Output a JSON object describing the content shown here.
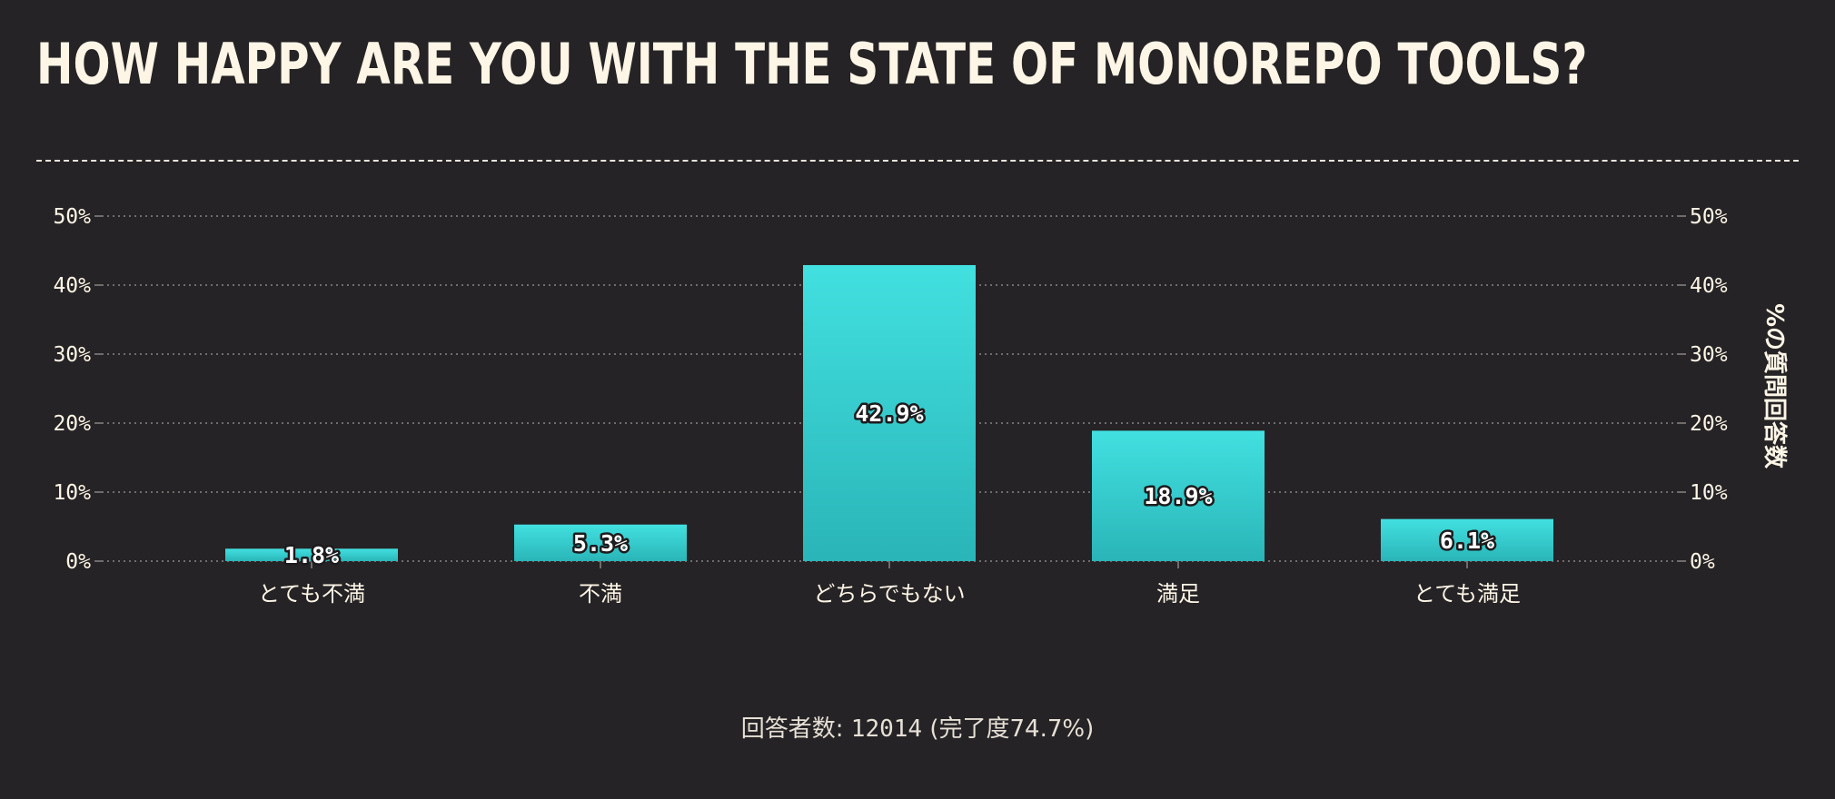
{
  "page": {
    "title": "HOW HAPPY ARE YOU WITH THE STATE OF MONOREPO TOOLS?",
    "footer_label": "回答者数:",
    "footer_count": "12014",
    "footer_completion": "(完了度74.7%)"
  },
  "colors": {
    "background": "#252325",
    "bar_top": "#42e0e0",
    "bar_bottom": "#2ab5b8",
    "text": "#fdf5e6",
    "grid": "#8a8585"
  },
  "chart_data": {
    "type": "bar",
    "categories": [
      "とても不満",
      "不満",
      "どちらでもない",
      "満足",
      "とても満足"
    ],
    "values": [
      1.8,
      5.3,
      42.9,
      18.9,
      6.1
    ],
    "value_labels": [
      "1.8%",
      "5.3%",
      "42.9%",
      "18.9%",
      "6.1%"
    ],
    "title": "HOW HAPPY ARE YOU WITH THE STATE OF MONOREPO TOOLS?",
    "xlabel": "",
    "ylabel": "%の質問回答数",
    "ylim": [
      0,
      50
    ],
    "yticks": [
      0,
      10,
      20,
      30,
      40,
      50
    ],
    "ytick_labels": [
      "0%",
      "10%",
      "20%",
      "30%",
      "40%",
      "50%"
    ],
    "grid": true,
    "legend": "none"
  }
}
